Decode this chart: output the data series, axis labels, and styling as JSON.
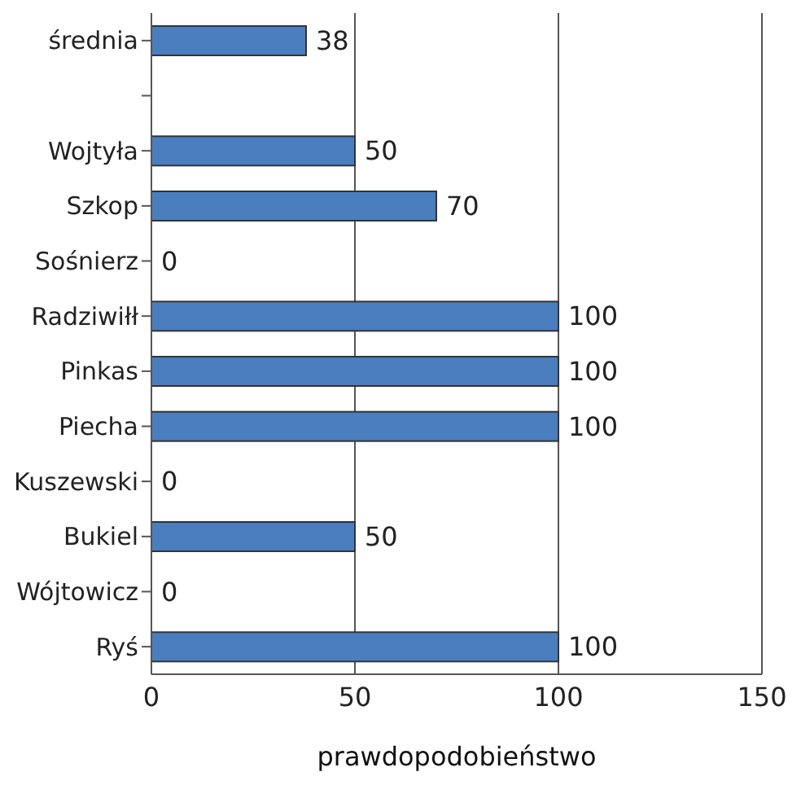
{
  "chart_data": {
    "type": "bar",
    "orientation": "horizontal",
    "xlabel": "prawdopodobieństwo",
    "categories": [
      "średnia",
      null,
      "Wojtyła",
      "Szkop",
      "Sośnierz",
      "Radziwiłł",
      "Pinkas",
      "Piecha",
      "Kuszewski",
      "Bukiel",
      "Wójtowicz",
      "Ryś"
    ],
    "values": [
      38,
      null,
      50,
      70,
      0,
      100,
      100,
      100,
      0,
      50,
      0,
      100
    ],
    "color": "#4a7ebf",
    "xlim": [
      0,
      150
    ],
    "xticks": [
      0,
      50,
      100,
      150
    ],
    "grid": "x",
    "data_labels": true
  }
}
